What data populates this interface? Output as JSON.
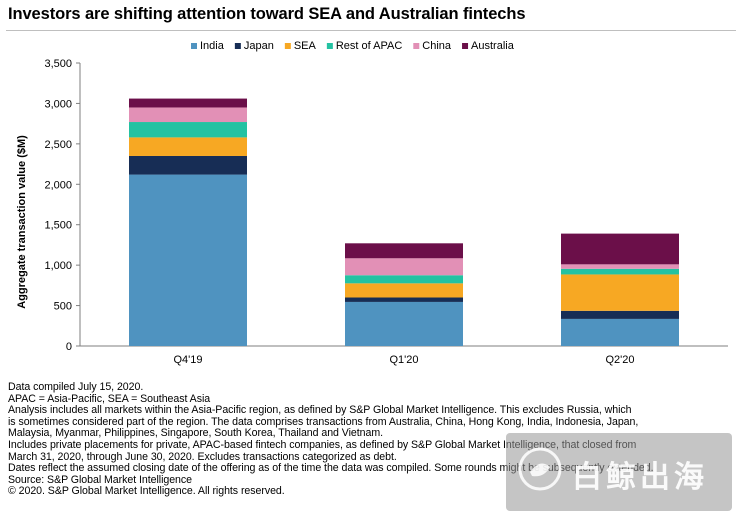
{
  "title": "Investors are shifting attention toward SEA and Australian fintechs",
  "chart_data": {
    "type": "bar",
    "stacked": true,
    "categories": [
      "Q4'19",
      "Q1'20",
      "Q2'20"
    ],
    "series": [
      {
        "name": "India",
        "color": "#4f93c0",
        "values": [
          2120,
          545,
          335
        ]
      },
      {
        "name": "Japan",
        "color": "#172d55",
        "values": [
          230,
          55,
          100
        ]
      },
      {
        "name": "SEA",
        "color": "#f7a823",
        "values": [
          230,
          175,
          450
        ]
      },
      {
        "name": "Rest of APAC",
        "color": "#24c2a2",
        "values": [
          190,
          100,
          70
        ]
      },
      {
        "name": "China",
        "color": "#e290b6",
        "values": [
          180,
          210,
          55
        ]
      },
      {
        "name": "Australia",
        "color": "#6b0f49",
        "values": [
          110,
          185,
          380
        ]
      }
    ],
    "ylabel": "Aggregate transaction value ($M)",
    "ylim": [
      0,
      3500
    ],
    "yticks": [
      "0",
      "500",
      "1,000",
      "1,500",
      "2,000",
      "2,500",
      "3,000",
      "3,500"
    ],
    "grid": false,
    "legend": "top"
  },
  "notes": [
    "Data compiled July 15, 2020.",
    "APAC = Asia-Pacific, SEA = Southeast Asia",
    "Analysis includes all markets within the Asia-Pacific region, as defined by S&P Global Market Intelligence. This excludes Russia, which",
    "is sometimes considered part of the region. The data comprises transactions from Australia, China, Hong Kong, India, Indonesia, Japan,",
    "Malaysia, Myanmar, Philippines, Singapore, South Korea, Thailand and Vietnam.",
    "Includes private placements for private, APAC-based fintech companies, as defined by S&P Global Market Intelligence, that closed from",
    "March 31, 2020, through June 30, 2020. Excludes transactions categorized as debt.",
    "Dates reflect the assumed closing date of the offering as of the time the data was compiled. Some rounds might be subsequently extended.",
    "Source: S&P Global Market Intelligence",
    "© 2020. S&P Global Market Intelligence. All rights reserved."
  ],
  "watermark": {
    "text": "白鲸出海",
    "logo_icon": "whale-logo-icon"
  }
}
